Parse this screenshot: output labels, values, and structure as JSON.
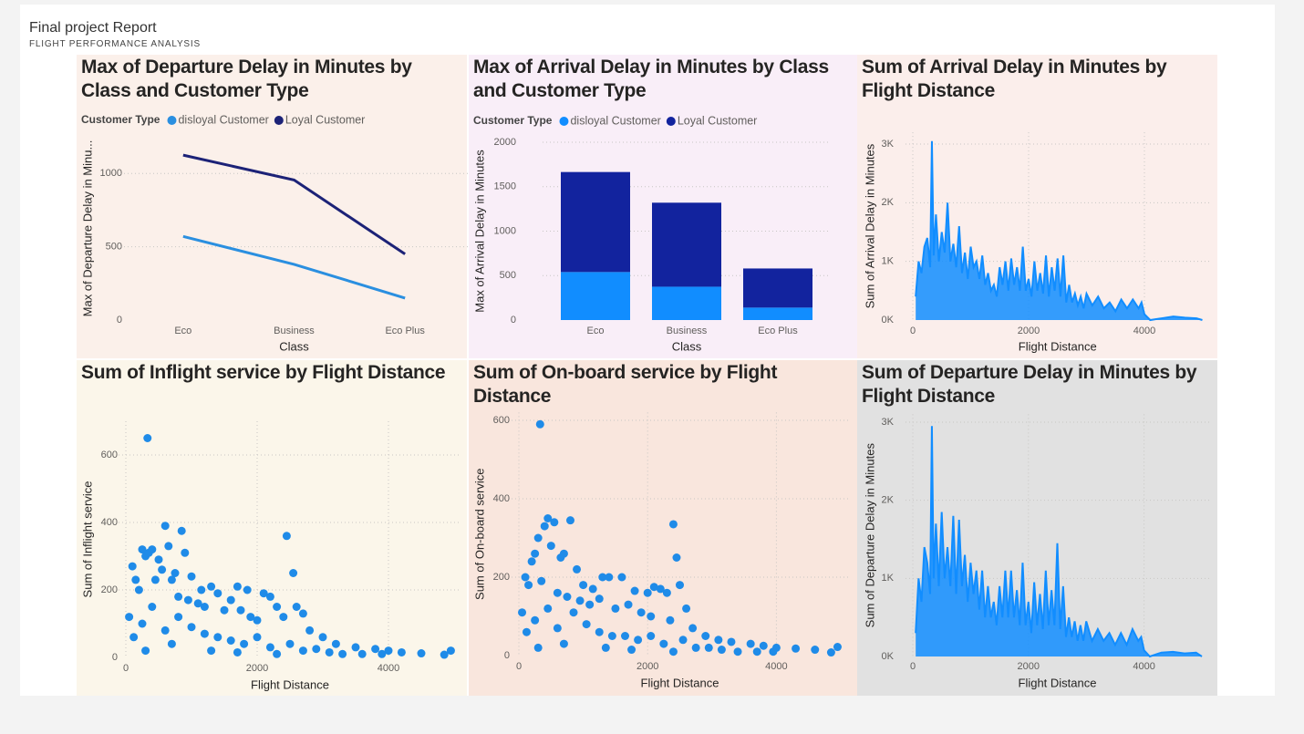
{
  "header": {
    "title": "Final project Report",
    "subtitle": "FLIGHT PERFORMANCE ANALYSIS"
  },
  "chart_data": [
    {
      "type": "line",
      "title": "Max of Departure Delay in Minutes by Class and Customer Type",
      "legend_title": "Customer Type",
      "x_label": "Class",
      "y_label": "Max of Departure Delay in Minu...",
      "categories": [
        "Eco",
        "Business",
        "Eco Plus"
      ],
      "series": [
        {
          "name": "disloyal Customer",
          "color": "#2a8fe0",
          "values": [
            570,
            380,
            150
          ]
        },
        {
          "name": "Loyal Customer",
          "color": "#1c2277",
          "values": [
            1125,
            955,
            450
          ]
        }
      ],
      "ylim": [
        0,
        1250
      ],
      "yticks": [
        0,
        500,
        1000
      ],
      "grid": true
    },
    {
      "type": "bar",
      "stacked": true,
      "title": "Max of Arrival Delay in Minutes by Class and Customer Type",
      "legend_title": "Customer Type",
      "x_label": "Class",
      "y_label": "Max of Arrival Delay in Minutes",
      "categories": [
        "Eco",
        "Business",
        "Eco Plus"
      ],
      "series": [
        {
          "name": "disloyal Customer",
          "color": "#118dff",
          "values": [
            540,
            375,
            140
          ]
        },
        {
          "name": "Loyal Customer",
          "color": "#12239e",
          "values": [
            1125,
            945,
            440
          ]
        }
      ],
      "ylim": [
        0,
        2000
      ],
      "yticks": [
        0,
        500,
        1000,
        1500,
        2000
      ],
      "grid": true
    },
    {
      "type": "line",
      "title": "Sum of Arrival Delay in Minutes by Flight Distance",
      "x_label": "Flight Distance",
      "y_label": "Sum of Arrival Delay in Minutes",
      "color": "#118dff",
      "x": [
        50,
        100,
        150,
        200,
        250,
        300,
        330,
        360,
        400,
        450,
        500,
        550,
        600,
        650,
        700,
        750,
        800,
        850,
        900,
        950,
        1000,
        1050,
        1100,
        1150,
        1200,
        1250,
        1300,
        1350,
        1400,
        1450,
        1500,
        1550,
        1600,
        1650,
        1700,
        1750,
        1800,
        1850,
        1900,
        1950,
        2000,
        2050,
        2100,
        2150,
        2200,
        2250,
        2300,
        2350,
        2400,
        2450,
        2500,
        2550,
        2600,
        2650,
        2700,
        2750,
        2800,
        2850,
        2900,
        2950,
        3000,
        3100,
        3200,
        3300,
        3400,
        3500,
        3600,
        3700,
        3800,
        3900,
        3950,
        4000,
        4100,
        4300,
        4500,
        4700,
        4900,
        5000
      ],
      "values": [
        400,
        1000,
        800,
        1250,
        1400,
        900,
        3050,
        1100,
        1800,
        1000,
        1500,
        1150,
        2000,
        1000,
        1300,
        900,
        1600,
        800,
        1150,
        700,
        1250,
        900,
        1000,
        700,
        1100,
        600,
        800,
        500,
        600,
        400,
        900,
        600,
        1000,
        500,
        1050,
        600,
        900,
        500,
        1250,
        500,
        700,
        400,
        1000,
        500,
        800,
        450,
        1100,
        400,
        900,
        500,
        1050,
        400,
        1100,
        300,
        600,
        300,
        450,
        250,
        400,
        200,
        450,
        250,
        400,
        200,
        300,
        150,
        350,
        200,
        350,
        200,
        300,
        100,
        0,
        30,
        60,
        40,
        30,
        0
      ],
      "xlim": [
        0,
        5000
      ],
      "xticks": [
        0,
        2000,
        4000
      ],
      "ylim": [
        0,
        3200
      ],
      "yticks": [
        {
          "value": 0,
          "label": "0K"
        },
        {
          "value": 1000,
          "label": "1K"
        },
        {
          "value": 2000,
          "label": "2K"
        },
        {
          "value": 3000,
          "label": "3K"
        }
      ],
      "grid": true
    },
    {
      "type": "scatter",
      "title": "Sum of Inflight service by Flight Distance",
      "x_label": "Flight Distance",
      "y_label": "Sum of Inflight service",
      "color": "#1f8be8",
      "x": [
        330,
        600,
        850,
        2450,
        650,
        250,
        300,
        350,
        400,
        500,
        900,
        550,
        700,
        750,
        1000,
        1150,
        1300,
        1400,
        1700,
        1850,
        2100,
        2200,
        2300,
        2550,
        2600,
        2700,
        1600,
        1200,
        100,
        150,
        200,
        450,
        800,
        950,
        1100,
        1500,
        1750,
        1900,
        2000,
        2400,
        2800,
        3000,
        3200,
        3500,
        3800,
        4000,
        4200,
        4500,
        4850,
        4950,
        50,
        120,
        250,
        400,
        600,
        800,
        1000,
        1200,
        1400,
        1600,
        1800,
        2000,
        2200,
        2500,
        2700,
        2900,
        3100,
        3300,
        3600,
        3900,
        300,
        700,
        1300,
        1700,
        2300
      ],
      "values": [
        650,
        390,
        375,
        360,
        330,
        320,
        300,
        310,
        320,
        290,
        310,
        260,
        230,
        250,
        240,
        200,
        210,
        190,
        210,
        200,
        190,
        180,
        150,
        250,
        150,
        130,
        170,
        150,
        270,
        230,
        200,
        230,
        180,
        170,
        160,
        140,
        140,
        120,
        110,
        120,
        80,
        60,
        40,
        30,
        25,
        20,
        15,
        12,
        8,
        20,
        120,
        60,
        100,
        150,
        80,
        120,
        90,
        70,
        60,
        50,
        40,
        60,
        30,
        40,
        20,
        25,
        15,
        10,
        10,
        10,
        20,
        40,
        20,
        15,
        10
      ],
      "xlim": [
        0,
        5000
      ],
      "xticks": [
        0,
        2000,
        4000
      ],
      "ylim": [
        0,
        700
      ],
      "yticks": [
        0,
        200,
        400,
        600
      ],
      "grid": true
    },
    {
      "type": "scatter",
      "title": "Sum of On-board service by Flight Distance",
      "x_label": "Flight Distance",
      "y_label": "Sum of On-board service",
      "color": "#1f8be8",
      "x": [
        330,
        450,
        800,
        2400,
        550,
        400,
        300,
        250,
        200,
        500,
        650,
        700,
        900,
        1000,
        1150,
        1300,
        1400,
        1600,
        1800,
        2000,
        2100,
        2200,
        2300,
        2450,
        2500,
        2600,
        1700,
        1250,
        100,
        150,
        350,
        600,
        750,
        950,
        1100,
        1500,
        1900,
        2050,
        2350,
        2700,
        2900,
        3100,
        3300,
        3600,
        3800,
        4000,
        4300,
        4600,
        4850,
        4950,
        50,
        120,
        250,
        450,
        600,
        850,
        1050,
        1250,
        1450,
        1650,
        1850,
        2050,
        2250,
        2550,
        2750,
        2950,
        3150,
        3400,
        3700,
        3950,
        300,
        700,
        1350,
        1750,
        2400
      ],
      "values": [
        590,
        350,
        345,
        335,
        340,
        330,
        300,
        260,
        240,
        280,
        250,
        260,
        220,
        180,
        170,
        200,
        200,
        200,
        165,
        160,
        175,
        170,
        160,
        250,
        180,
        120,
        130,
        145,
        200,
        180,
        190,
        160,
        150,
        140,
        130,
        120,
        110,
        100,
        90,
        70,
        50,
        40,
        35,
        30,
        25,
        20,
        18,
        15,
        8,
        22,
        110,
        60,
        90,
        120,
        70,
        110,
        80,
        60,
        50,
        50,
        40,
        50,
        30,
        40,
        20,
        20,
        15,
        10,
        10,
        10,
        20,
        30,
        20,
        15,
        10
      ],
      "xlim": [
        0,
        5000
      ],
      "xticks": [
        0,
        2000,
        4000
      ],
      "ylim": [
        0,
        620
      ],
      "yticks": [
        0,
        200,
        400,
        600
      ],
      "grid": true
    },
    {
      "type": "line",
      "title": "Sum of Departure Delay in Minutes by Flight Distance",
      "x_label": "Flight Distance",
      "y_label": "Sum of Departure Delay in Minutes",
      "color": "#118dff",
      "x": [
        50,
        100,
        150,
        200,
        250,
        300,
        330,
        360,
        400,
        450,
        500,
        550,
        600,
        650,
        700,
        750,
        800,
        850,
        900,
        950,
        1000,
        1050,
        1100,
        1150,
        1200,
        1250,
        1300,
        1350,
        1400,
        1450,
        1500,
        1550,
        1600,
        1650,
        1700,
        1750,
        1800,
        1850,
        1900,
        1950,
        2000,
        2050,
        2100,
        2150,
        2200,
        2250,
        2300,
        2350,
        2400,
        2450,
        2500,
        2550,
        2600,
        2650,
        2700,
        2750,
        2800,
        2850,
        2900,
        2950,
        3000,
        3100,
        3200,
        3300,
        3400,
        3500,
        3600,
        3700,
        3800,
        3900,
        3950,
        4000,
        4100,
        4300,
        4500,
        4700,
        4900,
        5000
      ],
      "values": [
        300,
        1000,
        700,
        1400,
        1200,
        800,
        2950,
        1000,
        1700,
        900,
        1850,
        1000,
        1400,
        900,
        1800,
        800,
        1750,
        900,
        1300,
        700,
        1200,
        800,
        1100,
        600,
        1100,
        500,
        900,
        500,
        700,
        400,
        900,
        500,
        1100,
        500,
        1100,
        500,
        850,
        400,
        1200,
        400,
        700,
        300,
        950,
        400,
        800,
        350,
        1100,
        400,
        850,
        400,
        1450,
        350,
        900,
        250,
        500,
        250,
        450,
        200,
        400,
        200,
        450,
        200,
        350,
        200,
        300,
        150,
        300,
        150,
        350,
        200,
        250,
        80,
        0,
        50,
        60,
        40,
        50,
        0
      ],
      "xlim": [
        0,
        5000
      ],
      "xticks": [
        0,
        2000,
        4000
      ],
      "ylim": [
        0,
        3100
      ],
      "yticks": [
        {
          "value": 0,
          "label": "0K"
        },
        {
          "value": 1000,
          "label": "1K"
        },
        {
          "value": 2000,
          "label": "2K"
        },
        {
          "value": 3000,
          "label": "3K"
        }
      ],
      "grid": true
    }
  ]
}
